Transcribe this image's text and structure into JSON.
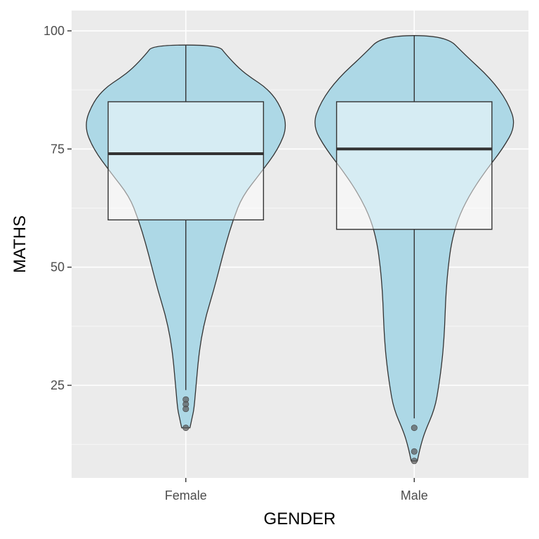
{
  "chart_data": {
    "type": "violin+boxplot",
    "xlabel": "GENDER",
    "ylabel": "MATHS",
    "categories": [
      "Female",
      "Male"
    ],
    "ylim": [
      5.4,
      104.3
    ],
    "yticks": [
      25,
      50,
      75,
      100
    ],
    "grid": true,
    "colors": {
      "panel": "#ebebeb",
      "grid_major": "#ffffff",
      "violin_fill": "#add8e6",
      "violin_stroke": "#333333",
      "box_fill": "#ffffff",
      "box_stroke": "#333333",
      "median": "#333333",
      "outlier": "#595959"
    },
    "series": [
      {
        "category": "Female",
        "box": {
          "whisker_low": 24,
          "q1": 60,
          "median": 74,
          "q3": 85,
          "whisker_high": 97
        },
        "outliers": [
          22,
          21,
          20,
          16
        ],
        "violin": {
          "y": [
            16,
            18,
            20,
            25,
            30,
            35,
            40,
            45,
            50,
            55,
            60,
            65,
            70,
            75,
            80,
            85,
            88,
            90,
            92,
            95,
            97
          ],
          "w": [
            0.04,
            0.06,
            0.08,
            0.1,
            0.12,
            0.15,
            0.2,
            0.27,
            0.33,
            0.39,
            0.46,
            0.55,
            0.73,
            0.9,
            0.99,
            0.9,
            0.78,
            0.64,
            0.52,
            0.39,
            0.32
          ]
        }
      },
      {
        "category": "Male",
        "box": {
          "whisker_low": 18,
          "q1": 58,
          "median": 75,
          "q3": 85,
          "whisker_high": 99
        },
        "outliers": [
          16,
          11,
          9
        ],
        "violin": {
          "y": [
            9,
            12,
            15,
            20,
            25,
            30,
            35,
            40,
            45,
            50,
            55,
            60,
            65,
            70,
            75,
            80,
            85,
            90,
            95,
            99
          ],
          "w": [
            0.03,
            0.06,
            0.1,
            0.2,
            0.24,
            0.27,
            0.29,
            0.3,
            0.31,
            0.33,
            0.36,
            0.42,
            0.53,
            0.68,
            0.86,
            0.99,
            0.91,
            0.74,
            0.49,
            0.31
          ]
        }
      }
    ]
  }
}
